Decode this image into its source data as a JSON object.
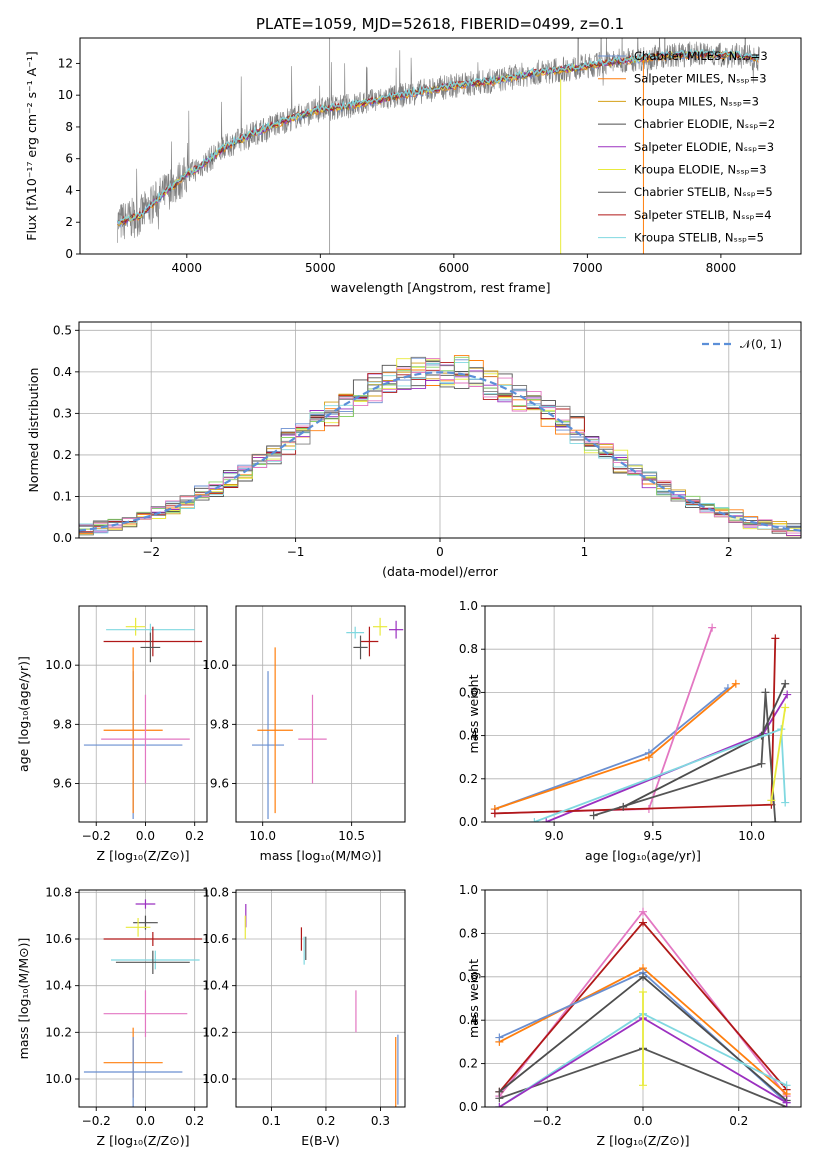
{
  "colors": {
    "series": [
      "#6a8fd0",
      "#ff7f0e",
      "#d4a017",
      "#4d4d4d",
      "#9b30c0",
      "#e8ea3c",
      "#555555",
      "#b01818",
      "#80d8e0"
    ],
    "extra": [
      "#8bd36a",
      "#e377c2",
      "#7f7f7f"
    ],
    "grid": "#b0b0b0",
    "normal_line": "#5b8fd8"
  },
  "chart_data": [
    {
      "type": "line",
      "name": "spectrum",
      "title": "PLATE=1059, MJD=52618, FIBERID=0499, z=0.1",
      "xlabel": "wavelength [Angstrom, rest frame]",
      "ylabel": "Flux [fλ10⁻¹⁷ erg cm⁻² s⁻¹ A⁻¹]",
      "xlim": [
        3200,
        8600
      ],
      "ylim": [
        0,
        13.6
      ],
      "xticks": [
        4000,
        5000,
        6000,
        7000,
        8000
      ],
      "yticks": [
        0,
        2,
        4,
        6,
        8,
        10,
        12
      ],
      "legend": "upper right",
      "legend_entries": [
        "Chabrier MILES, N_SSP=3",
        "Salpeter MILES, N_SSP=3",
        "Kroupa MILES, N_SSP=3",
        "Chabrier ELODIE, N_SSP=2",
        "Salpeter ELODIE, N_SSP=3",
        "Kroupa ELODIE, N_SSP=3",
        "Chabrier STELIB, N_SSP=5",
        "Salpeter STELIB, N_SSP=4",
        "Kroupa STELIB, N_SSP=5"
      ],
      "continuum_wavelength": [
        3500,
        3650,
        3800,
        3900,
        4000,
        4100,
        4300,
        4500,
        4800,
        5000,
        5200,
        5500,
        5800,
        6000,
        6300,
        6600,
        6900,
        7200,
        7500,
        7800,
        8100,
        8300
      ],
      "continuum_flux": [
        2.0,
        2.4,
        3.6,
        4.3,
        5.0,
        5.5,
        6.8,
        7.6,
        8.6,
        9.1,
        9.3,
        9.8,
        10.3,
        10.6,
        10.9,
        11.4,
        11.7,
        12.1,
        12.4,
        12.6,
        12.5,
        12.3
      ]
    },
    {
      "type": "line",
      "name": "residual-distribution",
      "xlabel": "(data-model)/error",
      "ylabel": "Normed distribution",
      "xlim": [
        -2.5,
        2.5
      ],
      "ylim": [
        0,
        0.52
      ],
      "xticks": [
        -2,
        -1,
        0,
        1,
        2
      ],
      "yticks": [
        0.0,
        0.1,
        0.2,
        0.3,
        0.4,
        0.5
      ],
      "grid": true,
      "legend": "upper right",
      "legend_entries": [
        "𝒩(0, 1)"
      ]
    },
    {
      "type": "scatter",
      "name": "age-vs-metallicity",
      "xlabel": "Z [log₁₀(Z/Z⊙)]",
      "ylabel": "age  [log₁₀(age/yr)]",
      "xlim": [
        -0.27,
        0.25
      ],
      "ylim": [
        9.47,
        10.2
      ],
      "xticks": [
        -0.2,
        0.0,
        0.2
      ],
      "yticks": [
        9.6,
        9.8,
        10.0
      ],
      "grid": true,
      "points": [
        {
          "x": -0.04,
          "y": 10.13,
          "xerr": 0.04,
          "yerr": 0.03,
          "color": "#e8ea3c"
        },
        {
          "x": 0.02,
          "y": 10.12,
          "xerr": 0.18,
          "yerr": 0.02,
          "color": "#80d8e0"
        },
        {
          "x": 0.03,
          "y": 10.08,
          "xerr": 0.2,
          "yerr": 0.05,
          "color": "#b01818"
        },
        {
          "x": 0.02,
          "y": 10.06,
          "xerr": 0.04,
          "yerr": 0.05,
          "color": "#555555"
        },
        {
          "x": -0.05,
          "y": 9.73,
          "xerr": 0.2,
          "yerr": 0.25,
          "color": "#6a8fd0"
        },
        {
          "x": -0.05,
          "y": 9.78,
          "xerr": 0.12,
          "yerr": 0.28,
          "color": "#ff7f0e"
        },
        {
          "x": 0.0,
          "y": 9.75,
          "xerr": 0.18,
          "yerr": 0.15,
          "color": "#e377c2"
        }
      ]
    },
    {
      "type": "scatter",
      "name": "age-vs-mass",
      "xlabel": "mass [log₁₀(M/M⊙)]",
      "xlim": [
        9.85,
        10.8
      ],
      "ylim": [
        9.47,
        10.2
      ],
      "xticks": [
        10.0,
        10.5
      ],
      "yticks": [
        9.6,
        9.8,
        10.0
      ],
      "grid": true,
      "points": [
        {
          "x": 10.52,
          "y": 10.11,
          "xerr": 0.05,
          "yerr": 0.02,
          "color": "#80d8e0"
        },
        {
          "x": 10.66,
          "y": 10.13,
          "xerr": 0.04,
          "yerr": 0.03,
          "color": "#e8ea3c"
        },
        {
          "x": 10.75,
          "y": 10.12,
          "xerr": 0.04,
          "yerr": 0.03,
          "color": "#9b30c0"
        },
        {
          "x": 10.6,
          "y": 10.08,
          "xerr": 0.05,
          "yerr": 0.05,
          "color": "#b01818"
        },
        {
          "x": 10.55,
          "y": 10.06,
          "xerr": 0.04,
          "yerr": 0.04,
          "color": "#555555"
        },
        {
          "x": 10.03,
          "y": 9.73,
          "xerr": 0.09,
          "yerr": 0.25,
          "color": "#6a8fd0"
        },
        {
          "x": 10.07,
          "y": 9.78,
          "xerr": 0.1,
          "yerr": 0.28,
          "color": "#ff7f0e"
        },
        {
          "x": 10.28,
          "y": 9.75,
          "xerr": 0.08,
          "yerr": 0.15,
          "color": "#e377c2"
        }
      ]
    },
    {
      "type": "line",
      "name": "mass-weight-vs-age",
      "xlabel": "age  [log₁₀(age/yr)]",
      "ylabel": "mass weight",
      "xlim": [
        8.65,
        10.25
      ],
      "ylim": [
        0,
        1.0
      ],
      "xticks": [
        9.0,
        9.5,
        10.0
      ],
      "yticks": [
        0.0,
        0.2,
        0.4,
        0.6,
        0.8,
        1.0
      ],
      "grid": true,
      "series": [
        {
          "color": "#6a8fd0",
          "x": [
            8.7,
            9.48,
            9.88
          ],
          "y": [
            0.06,
            0.32,
            0.62
          ]
        },
        {
          "color": "#ff7f0e",
          "x": [
            8.7,
            9.48,
            9.92
          ],
          "y": [
            0.06,
            0.3,
            0.64
          ]
        },
        {
          "color": "#e377c2",
          "x": [
            8.7,
            9.48,
            9.8
          ],
          "y": [
            0.04,
            0.06,
            0.9
          ]
        },
        {
          "color": "#9b30c0",
          "x": [
            8.96,
            10.06,
            10.18
          ],
          "y": [
            0.0,
            0.41,
            0.59
          ]
        },
        {
          "color": "#b01818",
          "x": [
            8.7,
            10.1,
            10.12
          ],
          "y": [
            0.04,
            0.08,
            0.85
          ]
        },
        {
          "color": "#555555",
          "x": [
            9.2,
            10.05,
            10.07,
            10.12
          ],
          "y": [
            0.03,
            0.27,
            0.6,
            0.0
          ]
        },
        {
          "color": "#4d4d4d",
          "x": [
            9.35,
            10.05,
            10.17
          ],
          "y": [
            0.07,
            0.4,
            0.64
          ]
        },
        {
          "color": "#80d8e0",
          "x": [
            8.9,
            10.15,
            10.17
          ],
          "y": [
            0.0,
            0.43,
            0.09
          ]
        },
        {
          "color": "#e8ea3c",
          "x": [
            10.1,
            10.17
          ],
          "y": [
            0.1,
            0.53
          ]
        }
      ]
    },
    {
      "type": "scatter",
      "name": "mass-vs-metallicity",
      "xlabel": "Z [log₁₀(Z/Z⊙)]",
      "ylabel": "mass [log₁₀(M/M⊙)]",
      "xlim": [
        -0.27,
        0.25
      ],
      "ylim": [
        9.88,
        10.81
      ],
      "xticks": [
        -0.2,
        0.0,
        0.2
      ],
      "yticks": [
        10.0,
        10.2,
        10.4,
        10.6,
        10.8
      ],
      "grid": true,
      "points": [
        {
          "x": 0.0,
          "y": 10.75,
          "xerr": 0.04,
          "yerr": 0.02,
          "color": "#9b30c0"
        },
        {
          "x": 0.0,
          "y": 10.67,
          "xerr": 0.05,
          "yerr": 0.03,
          "color": "#4d4d4d"
        },
        {
          "x": -0.03,
          "y": 10.65,
          "xerr": 0.05,
          "yerr": 0.04,
          "color": "#e8ea3c"
        },
        {
          "x": 0.03,
          "y": 10.6,
          "xerr": 0.2,
          "yerr": 0.03,
          "color": "#b01818"
        },
        {
          "x": 0.04,
          "y": 10.51,
          "xerr": 0.18,
          "yerr": 0.04,
          "color": "#80d8e0"
        },
        {
          "x": 0.03,
          "y": 10.5,
          "xerr": 0.15,
          "yerr": 0.05,
          "color": "#555555"
        },
        {
          "x": 0.0,
          "y": 10.28,
          "xerr": 0.17,
          "yerr": 0.1,
          "color": "#e377c2"
        },
        {
          "x": -0.05,
          "y": 10.07,
          "xerr": 0.12,
          "yerr": 0.15,
          "color": "#ff7f0e"
        },
        {
          "x": -0.05,
          "y": 10.03,
          "xerr": 0.2,
          "yerr": 0.15,
          "color": "#6a8fd0"
        }
      ]
    },
    {
      "type": "scatter",
      "name": "mass-vs-extinction",
      "xlabel": "E(B-V)",
      "xlim": [
        0.035,
        0.345
      ],
      "ylim": [
        9.88,
        10.81
      ],
      "xticks": [
        0.1,
        0.2,
        0.3
      ],
      "yticks": [
        10.0,
        10.2,
        10.4,
        10.6,
        10.8
      ],
      "grid": true,
      "points": [
        {
          "x": 0.053,
          "y": 10.7,
          "xerr": 0.0,
          "yerr": 0.05,
          "color": "#9b30c0"
        },
        {
          "x": 0.052,
          "y": 10.65,
          "xerr": 0.0,
          "yerr": 0.05,
          "color": "#e8ea3c"
        },
        {
          "x": 0.155,
          "y": 10.6,
          "xerr": 0.0,
          "yerr": 0.05,
          "color": "#b01818"
        },
        {
          "x": 0.16,
          "y": 10.55,
          "xerr": 0.0,
          "yerr": 0.06,
          "color": "#80d8e0"
        },
        {
          "x": 0.163,
          "y": 10.56,
          "xerr": 0.0,
          "yerr": 0.05,
          "color": "#555555"
        },
        {
          "x": 0.255,
          "y": 10.29,
          "xerr": 0.0,
          "yerr": 0.09,
          "color": "#e377c2"
        },
        {
          "x": 0.328,
          "y": 10.03,
          "xerr": 0.0,
          "yerr": 0.15,
          "color": "#ff7f0e"
        },
        {
          "x": 0.332,
          "y": 10.04,
          "xerr": 0.0,
          "yerr": 0.15,
          "color": "#6a8fd0"
        }
      ]
    },
    {
      "type": "line",
      "name": "mass-weight-vs-metallicity",
      "xlabel": "Z [log₁₀(Z/Z⊙)]",
      "ylabel": "mass weight",
      "xlim": [
        -0.33,
        0.33
      ],
      "ylim": [
        0,
        1.0
      ],
      "xticks": [
        -0.2,
        0.0,
        0.2
      ],
      "yticks": [
        0.0,
        0.2,
        0.4,
        0.6,
        0.8,
        1.0
      ],
      "grid": true,
      "series": [
        {
          "color": "#e377c2",
          "x": [
            -0.3,
            0.0,
            0.3
          ],
          "y": [
            0.05,
            0.9,
            0.05
          ]
        },
        {
          "color": "#b01818",
          "x": [
            -0.3,
            0.0,
            0.3
          ],
          "y": [
            0.07,
            0.85,
            0.08
          ]
        },
        {
          "color": "#ff7f0e",
          "x": [
            -0.3,
            0.0,
            0.3
          ],
          "y": [
            0.3,
            0.64,
            0.06
          ]
        },
        {
          "color": "#6a8fd0",
          "x": [
            -0.3,
            0.0,
            0.3
          ],
          "y": [
            0.32,
            0.62,
            0.02
          ]
        },
        {
          "color": "#4d4d4d",
          "x": [
            -0.3,
            0.0,
            0.3
          ],
          "y": [
            0.07,
            0.6,
            0.03
          ]
        },
        {
          "color": "#555555",
          "x": [
            -0.3,
            0.0,
            0.3
          ],
          "y": [
            0.04,
            0.27,
            0.0
          ]
        },
        {
          "color": "#80d8e0",
          "x": [
            -0.3,
            0.0,
            0.3
          ],
          "y": [
            0.0,
            0.43,
            0.1
          ]
        },
        {
          "color": "#9b30c0",
          "x": [
            -0.3,
            0.0,
            0.3
          ],
          "y": [
            0.0,
            0.41,
            0.02
          ]
        },
        {
          "color": "#e8ea3c",
          "x": [
            0.0,
            0.0
          ],
          "y": [
            0.1,
            0.53
          ]
        }
      ]
    }
  ]
}
